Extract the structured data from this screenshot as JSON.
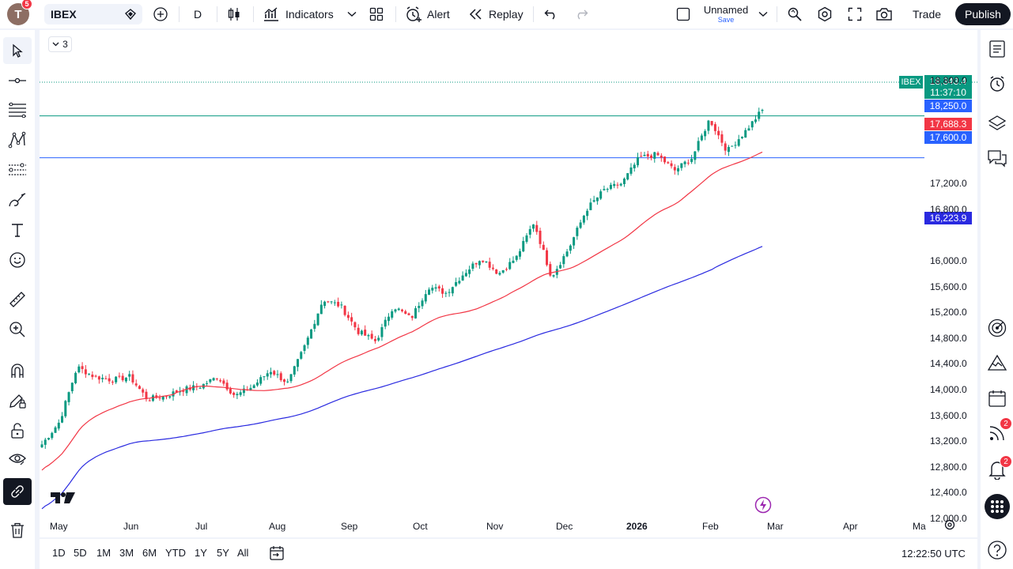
{
  "topbar": {
    "avatar_letter": "T",
    "avatar_badge": "5",
    "symbol": "IBEX",
    "interval": "D",
    "indicators_label": "Indicators",
    "alert_label": "Alert",
    "replay_label": "Replay",
    "layout_name": "Unnamed",
    "layout_save": "Save",
    "trade_label": "Trade",
    "publish_label": "Publish"
  },
  "chart": {
    "legend_collapse": "3",
    "symbol_tag": "IBEX",
    "last_price": "18,343.4",
    "countdown": "11:37:10",
    "hline_upper": "18,250.0",
    "ma_short": "17,688.3",
    "hline_lower": "17,600.0",
    "ma_long": "16,223.9",
    "y_ticks": [
      "18,800.0",
      "17,200.0",
      "16,800.0",
      "16,000.0",
      "15,600.0",
      "15,200.0",
      "14,800.0",
      "14,400.0",
      "14,000.0",
      "13,600.0",
      "13,200.0",
      "12,800.0",
      "12,400.0",
      "12,000.0"
    ],
    "x_ticks": [
      "May",
      "Jun",
      "Jul",
      "Aug",
      "Sep",
      "Oct",
      "Nov",
      "Dec",
      "2026",
      "Feb",
      "Mar",
      "Apr",
      "Ma"
    ],
    "colors": {
      "up": "#089981",
      "down": "#f23645",
      "ma_short": "#f23645",
      "ma_long": "#2a2ae0",
      "hline_upper": "#089981",
      "hline_lower": "#2962ff"
    }
  },
  "chart_data": {
    "type": "candlestick",
    "symbol": "IBEX",
    "interval": "D",
    "ylim": [
      11800,
      19200
    ],
    "close_path": [
      [
        "May",
        13150
      ],
      [
        "",
        13500
      ],
      [
        "",
        14350
      ],
      [
        "",
        14200
      ],
      [
        "",
        14150
      ],
      [
        "Jun",
        14200
      ],
      [
        "",
        13850
      ],
      [
        "",
        13900
      ],
      [
        "",
        14000
      ],
      [
        "",
        14050
      ],
      [
        "",
        14200
      ],
      [
        "Jul",
        13900
      ],
      [
        "",
        14050
      ],
      [
        "",
        14300
      ],
      [
        "",
        14100
      ],
      [
        "Aug",
        14700
      ],
      [
        "",
        15400
      ],
      [
        "",
        15300
      ],
      [
        "",
        14900
      ],
      [
        "Sep",
        14750
      ],
      [
        "",
        15300
      ],
      [
        "",
        15100
      ],
      [
        "Oct",
        15600
      ],
      [
        "",
        15500
      ],
      [
        "",
        15800
      ],
      [
        "",
        16050
      ],
      [
        "",
        15800
      ],
      [
        "Nov",
        16050
      ],
      [
        "",
        16600
      ],
      [
        "",
        15750
      ],
      [
        "",
        16200
      ],
      [
        "Dec",
        16800
      ],
      [
        "",
        17100
      ],
      [
        "",
        17200
      ],
      [
        "",
        17600
      ],
      [
        "2026",
        17650
      ],
      [
        "",
        17400
      ],
      [
        "",
        17600
      ],
      [
        "Feb",
        18200
      ],
      [
        "",
        17700
      ],
      [
        "",
        18000
      ],
      [
        "",
        18343.4
      ]
    ],
    "ma_short_end": 17688.3,
    "ma_long_end": 16223.9
  },
  "bottombar": {
    "timeframes": [
      "1D",
      "5D",
      "1M",
      "3M",
      "6M",
      "YTD",
      "1Y",
      "5Y",
      "All"
    ],
    "clock": "12:22:50 UTC"
  },
  "rightbar": {
    "ideas_badge": "2",
    "alerts_badge": "2"
  }
}
